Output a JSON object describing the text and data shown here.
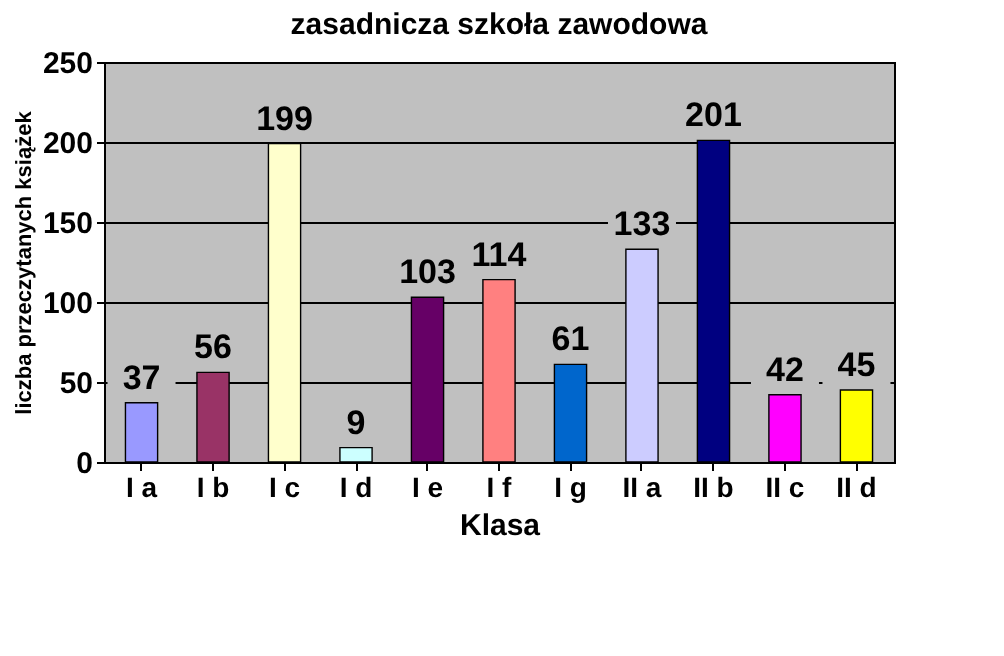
{
  "chart_data": {
    "type": "bar",
    "title": "zasadnicza szkoła zawodowa",
    "xlabel": "Klasa",
    "ylabel": "liczba przeczytanych książek",
    "categories": [
      "I a",
      "I b",
      "I c",
      "I d",
      "I e",
      "I f",
      "I g",
      "II a",
      "II b",
      "II c",
      "II d"
    ],
    "values": [
      37,
      56,
      199,
      9,
      103,
      114,
      61,
      133,
      201,
      42,
      45
    ],
    "colors": [
      "#9999ff",
      "#993366",
      "#ffffcc",
      "#ccffff",
      "#660066",
      "#ff8080",
      "#0066cc",
      "#ccccff",
      "#000080",
      "#ff00ff",
      "#ffff00"
    ],
    "ylim": [
      0,
      250
    ],
    "yticks": [
      0,
      50,
      100,
      150,
      200,
      250
    ],
    "grid": "y",
    "data_labels": true
  }
}
